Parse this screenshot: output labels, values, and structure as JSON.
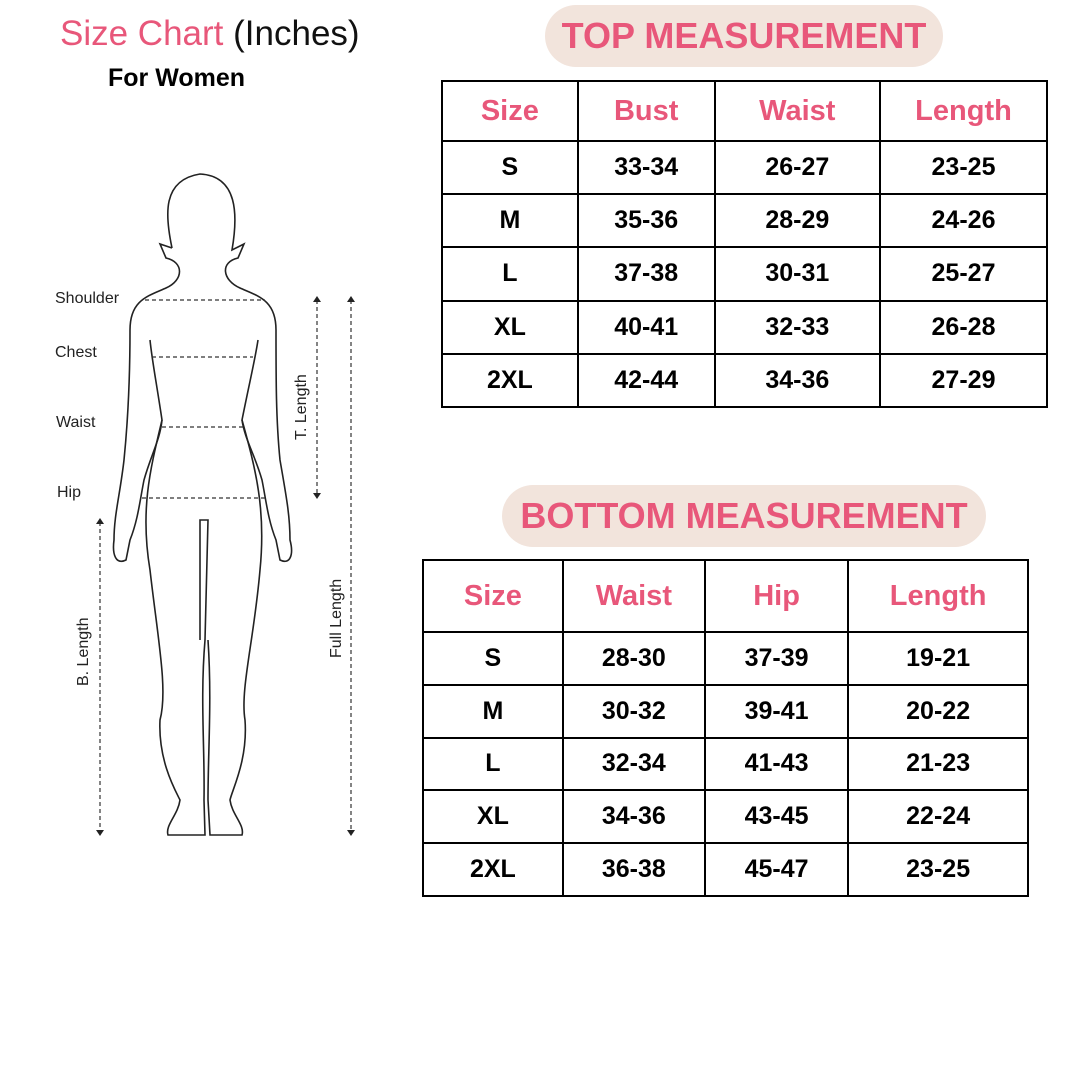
{
  "title": {
    "main": "Size Chart",
    "unit": "(Inches)",
    "subtitle": "For Women"
  },
  "colors": {
    "accent": "#e8577a",
    "pill_bg": "#f2e4dc"
  },
  "figure": {
    "labels": {
      "shoulder": "Shoulder",
      "chest": "Chest",
      "waist": "Waist",
      "hip": "Hip",
      "t_length": "T. Length",
      "full_length": "Full Length",
      "b_length": "B. Length"
    }
  },
  "top": {
    "heading": "TOP MEASUREMENT",
    "columns": [
      "Size",
      "Bust",
      "Waist",
      "Length"
    ],
    "rows": [
      [
        "S",
        "33-34",
        "26-27",
        "23-25"
      ],
      [
        "M",
        "35-36",
        "28-29",
        "24-26"
      ],
      [
        "L",
        "37-38",
        "30-31",
        "25-27"
      ],
      [
        "XL",
        "40-41",
        "32-33",
        "26-28"
      ],
      [
        "2XL",
        "42-44",
        "34-36",
        "27-29"
      ]
    ]
  },
  "bottom": {
    "heading": "BOTTOM MEASUREMENT",
    "columns": [
      "Size",
      "Waist",
      "Hip",
      "Length"
    ],
    "rows": [
      [
        "S",
        "28-30",
        "37-39",
        "19-21"
      ],
      [
        "M",
        "30-32",
        "39-41",
        "20-22"
      ],
      [
        "L",
        "32-34",
        "41-43",
        "21-23"
      ],
      [
        "XL",
        "34-36",
        "43-45",
        "22-24"
      ],
      [
        "2XL",
        "36-38",
        "45-47",
        "23-25"
      ]
    ]
  }
}
